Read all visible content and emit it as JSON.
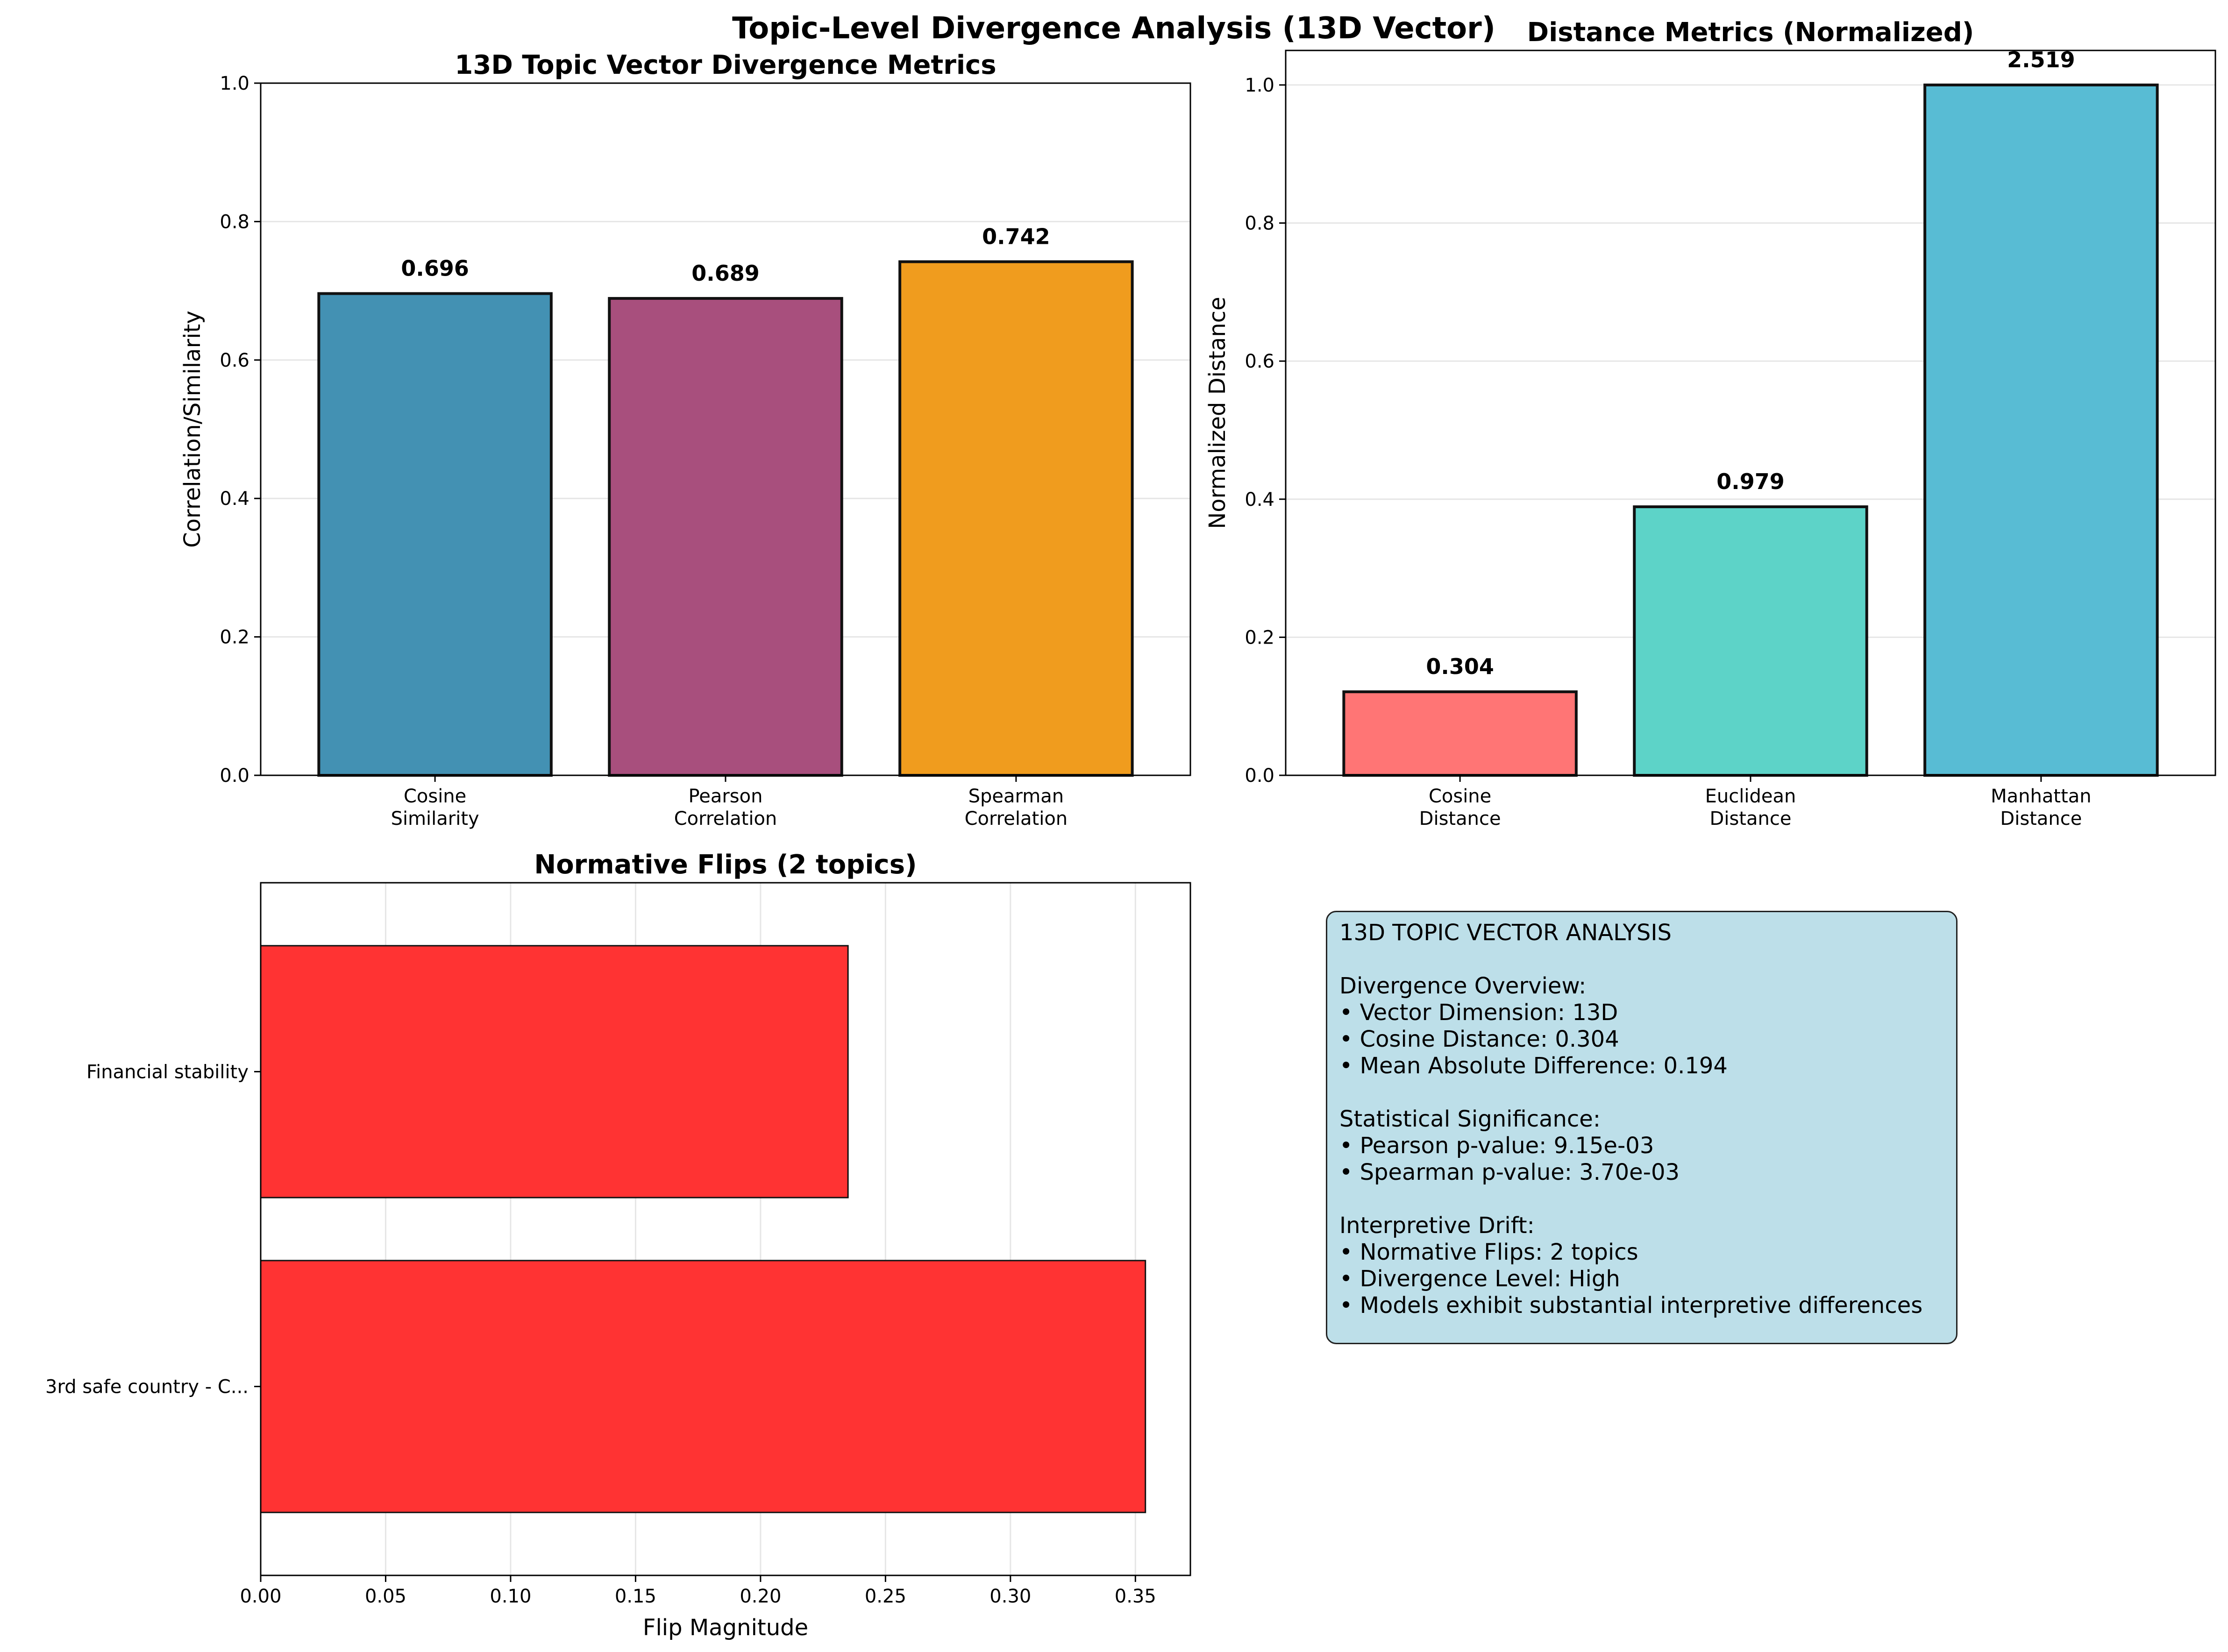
{
  "figure": {
    "suptitle": "Topic-Level Divergence Analysis (13D Vector)"
  },
  "chart_data": [
    {
      "type": "bar",
      "title": "13D Topic Vector Divergence Metrics",
      "xlabel": "",
      "ylabel": "Correlation/Similarity",
      "categories": [
        "Cosine\nSimilarity",
        "Pearson\nCorrelation",
        "Spearman\nCorrelation"
      ],
      "values": [
        0.696,
        0.689,
        0.742
      ],
      "value_labels": [
        "0.696",
        "0.689",
        "0.742"
      ],
      "colors": [
        "#4391b3",
        "#a84f7d",
        "#f09c1e"
      ],
      "ylim": [
        0,
        1.0
      ],
      "yticks": [
        0.0,
        0.2,
        0.4,
        0.6,
        0.8,
        1.0
      ],
      "ytick_labels": [
        "0.0",
        "0.2",
        "0.4",
        "0.6",
        "0.8",
        "1.0"
      ],
      "grid": true
    },
    {
      "type": "bar",
      "title": "Distance Metrics (Normalized)",
      "xlabel": "",
      "ylabel": "Normalized Distance",
      "categories": [
        "Cosine\nDistance",
        "Euclidean\nDistance",
        "Manhattan\nDistance"
      ],
      "values": [
        0.121,
        0.389,
        1.0
      ],
      "value_labels": [
        "0.304",
        "0.979",
        "2.519"
      ],
      "colors": [
        "#ff7575",
        "#5dd3c8",
        "#58bcd4"
      ],
      "ylim": [
        0,
        1.05
      ],
      "yticks": [
        0.0,
        0.2,
        0.4,
        0.6,
        0.8,
        1.0
      ],
      "ytick_labels": [
        "0.0",
        "0.2",
        "0.4",
        "0.6",
        "0.8",
        "1.0"
      ],
      "grid": true
    },
    {
      "type": "bar",
      "orientation": "horizontal",
      "title": "Normative Flips (2 topics)",
      "xlabel": "Flip Magnitude",
      "ylabel": "",
      "categories": [
        "Financial stability",
        "3rd safe country - C..."
      ],
      "values": [
        0.235,
        0.354
      ],
      "colors": [
        "#ff3333",
        "#ff3333"
      ],
      "xlim": [
        0,
        0.372
      ],
      "xticks": [
        0.0,
        0.05,
        0.1,
        0.15,
        0.2,
        0.25,
        0.3,
        0.35
      ],
      "xtick_labels": [
        "0.00",
        "0.05",
        "0.10",
        "0.15",
        "0.20",
        "0.25",
        "0.30",
        "0.35"
      ],
      "grid": true
    }
  ],
  "summary": {
    "lines": [
      "13D TOPIC VECTOR ANALYSIS",
      "",
      "Divergence Overview:",
      "• Vector Dimension: 13D",
      "• Cosine Distance: 0.304",
      "• Mean Absolute Difference: 0.194",
      "",
      "Statistical Significance:",
      "• Pearson p-value: 9.15e-03",
      "• Spearman p-value: 3.70e-03",
      "",
      "Interpretive Drift:",
      "• Normative Flips: 2 topics",
      "• Divergence Level: High",
      "• Models exhibit substantial interpretive differences"
    ]
  }
}
